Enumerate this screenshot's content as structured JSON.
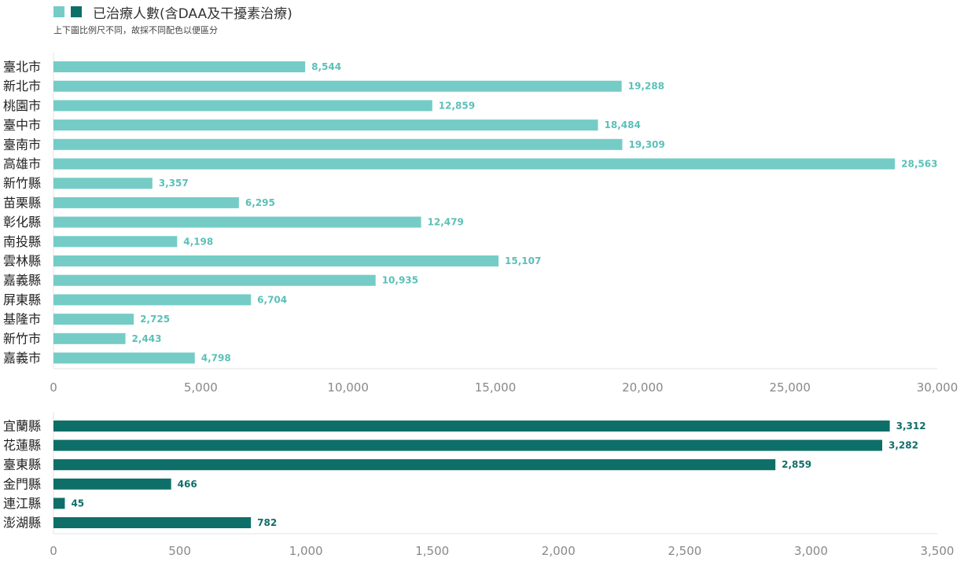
{
  "legend": {
    "title": "已治療人數(含DAA及干擾素治療)",
    "swatch_colors": [
      "#75CCC6",
      "#0E6F68"
    ]
  },
  "subtitle": "上下圖比例尺不同，故採不同配色以便區分",
  "chart_data": [
    {
      "type": "bar",
      "orientation": "horizontal",
      "color": "#75CCC6",
      "label_color": "#5BC0B8",
      "categories": [
        "臺北市",
        "新北市",
        "桃園市",
        "臺中市",
        "臺南市",
        "高雄市",
        "新竹縣",
        "苗栗縣",
        "彰化縣",
        "南投縣",
        "雲林縣",
        "嘉義縣",
        "屏東縣",
        "基隆市",
        "新竹市",
        "嘉義市"
      ],
      "values": [
        8544,
        19288,
        12859,
        18484,
        19309,
        28563,
        3357,
        6295,
        12479,
        4198,
        15107,
        10935,
        6704,
        2725,
        2443,
        4798
      ],
      "data_labels": [
        "8,544",
        "19,288",
        "12,859",
        "18,484",
        "19,309",
        "28,563",
        "3,357",
        "6,295",
        "12,479",
        "4,198",
        "15,107",
        "10,935",
        "6,704",
        "2,725",
        "2,443",
        "4,798"
      ],
      "xlim": [
        0,
        30000
      ],
      "ticks": [
        0,
        5000,
        10000,
        15000,
        20000,
        25000,
        30000
      ],
      "tick_labels": [
        "0",
        "5,000",
        "10,000",
        "15,000",
        "20,000",
        "25,000",
        "30,000"
      ],
      "grid": false
    },
    {
      "type": "bar",
      "orientation": "horizontal",
      "color": "#0E6F68",
      "label_color": "#0E6F68",
      "categories": [
        "宜蘭縣",
        "花蓮縣",
        "臺東縣",
        "金門縣",
        "連江縣",
        "澎湖縣"
      ],
      "values": [
        3312,
        3282,
        2859,
        466,
        45,
        782
      ],
      "data_labels": [
        "3,312",
        "3,282",
        "2,859",
        "466",
        "45",
        "782"
      ],
      "xlim": [
        0,
        3500
      ],
      "ticks": [
        0,
        500,
        1000,
        1500,
        2000,
        2500,
        3000,
        3500
      ],
      "tick_labels": [
        "0",
        "500",
        "1,000",
        "1,500",
        "2,000",
        "2,500",
        "3,000",
        "3,500"
      ],
      "grid": false
    }
  ]
}
